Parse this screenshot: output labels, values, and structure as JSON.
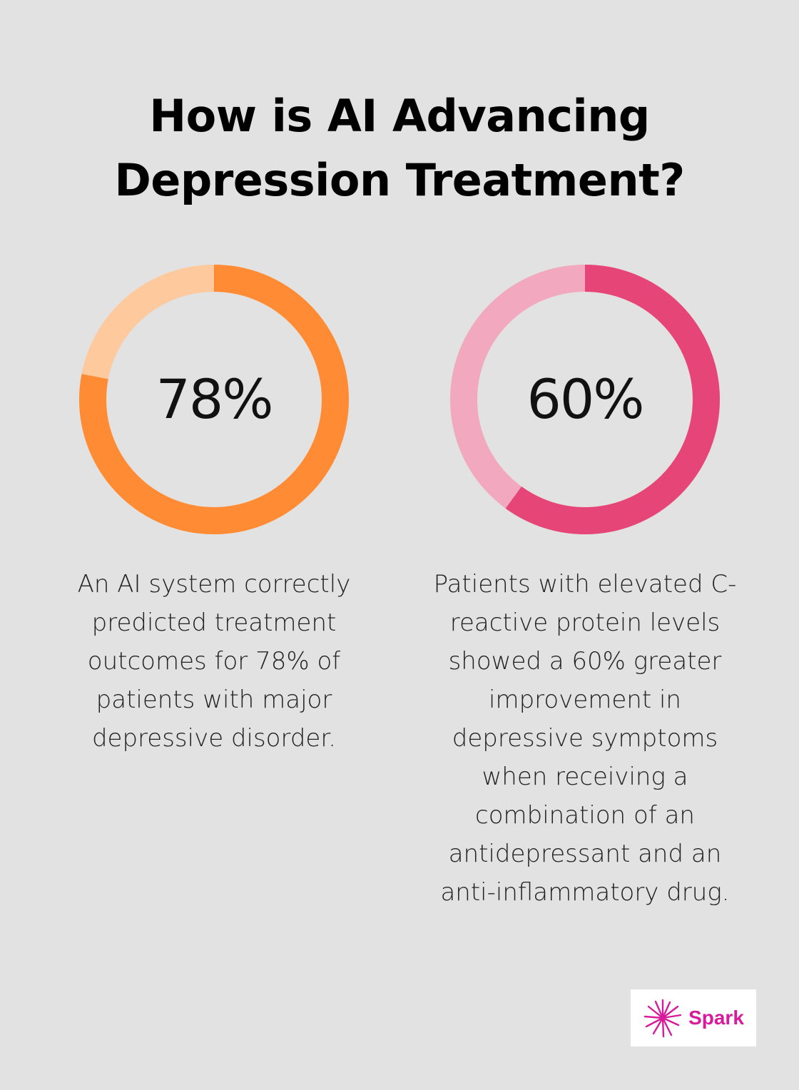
{
  "title": "How is AI Advancing Depression Treatment?",
  "stats": [
    {
      "value": 78,
      "label": "78%",
      "description": "An AI system correctly predicted treatment outcomes for 78% of patients with major depressive disorder.",
      "fill_color": "#ff8c35",
      "track_color": "#ffc99e"
    },
    {
      "value": 60,
      "label": "60%",
      "description": "Patients with elevated C-reactive protein levels showed a 60% greater improvement in depressive symptoms when receiving a combination of an antidepressant and an anti-inflammatory drug.",
      "fill_color": "#e54577",
      "track_color": "#f2a8be"
    }
  ],
  "logo": {
    "text": "Spark",
    "color": "#d81b9a",
    "icon": "starburst-icon"
  }
}
